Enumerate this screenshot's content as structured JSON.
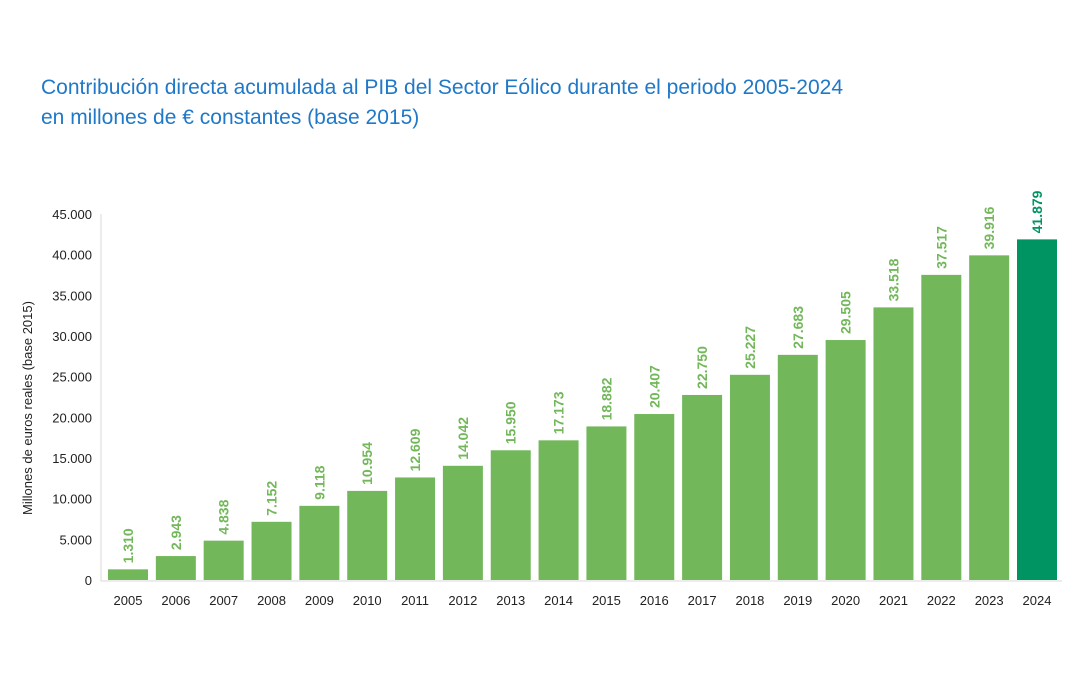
{
  "chart_data": {
    "type": "bar",
    "title": "Contribución directa acumulada al PIB del Sector Eólico durante el periodo 2005-2024",
    "subtitle": "en millones de € constantes (base 2015)",
    "xlabel": "",
    "ylabel": "Millones de euros reales (base 2015)",
    "ylim": [
      0,
      45000
    ],
    "yticks": [
      0,
      5000,
      10000,
      15000,
      20000,
      25000,
      30000,
      35000,
      40000,
      45000
    ],
    "ytick_labels": [
      "0",
      "5.000",
      "10.000",
      "15.000",
      "20.000",
      "25.000",
      "30.000",
      "35.000",
      "40.000",
      "45.000"
    ],
    "categories": [
      "2005",
      "2006",
      "2007",
      "2008",
      "2009",
      "2010",
      "2011",
      "2012",
      "2013",
      "2014",
      "2015",
      "2016",
      "2017",
      "2018",
      "2019",
      "2020",
      "2021",
      "2022",
      "2023",
      "2024"
    ],
    "values": [
      1310,
      2943,
      4838,
      7152,
      9118,
      10954,
      12609,
      14042,
      15950,
      17173,
      18882,
      20407,
      22750,
      25227,
      27683,
      29505,
      33518,
      37517,
      39916,
      41879
    ],
    "value_labels": [
      "1.310",
      "2.943",
      "4.838",
      "7.152",
      "9.118",
      "10.954",
      "12.609",
      "14.042",
      "15.950",
      "17.173",
      "18.882",
      "20.407",
      "22.750",
      "25.227",
      "27.683",
      "29.505",
      "33.518",
      "37.517",
      "39.916",
      "41.879"
    ],
    "grid": false,
    "colors": {
      "bar": "#72b85a",
      "highlight": "#009462",
      "label": "#72b85a",
      "highlight_label": "#009462",
      "title": "#1f78c8"
    }
  }
}
